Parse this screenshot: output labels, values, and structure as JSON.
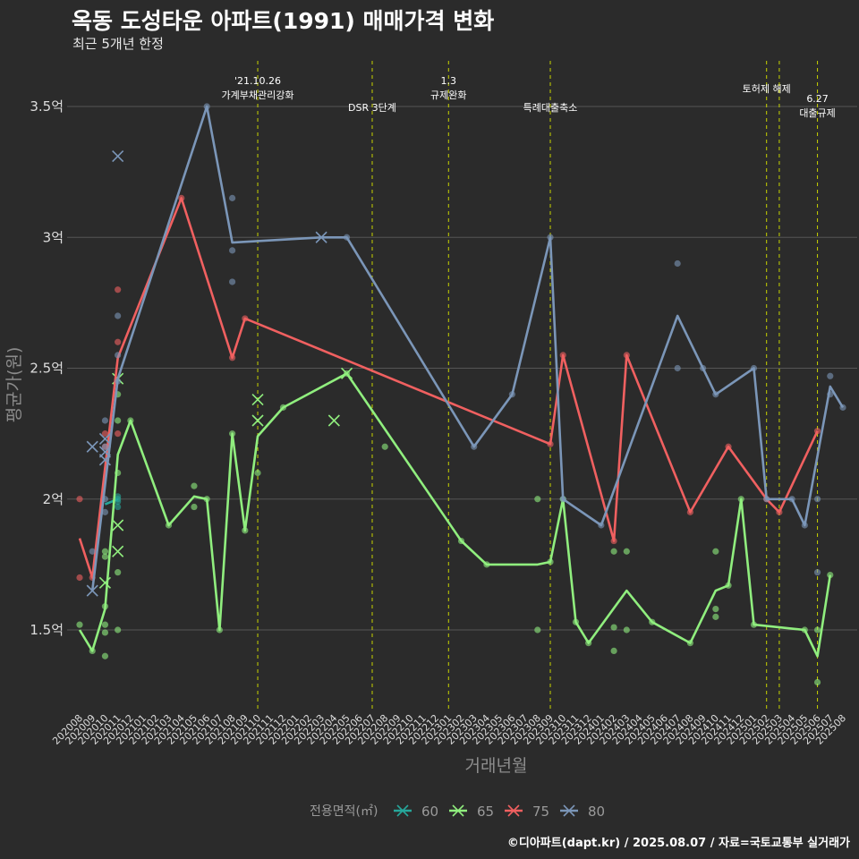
{
  "title": "옥동 도성타운 아파트(1991) 매매가격 변화",
  "subtitle": "최근 5개년 한정",
  "caption": "©디아파트(dapt.kr) / 2025.08.07 / 자료=국토교통부 실거래가",
  "colors": {
    "background": "#2b2b2b",
    "grid": "#555555",
    "policy_line": "#c8d400",
    "s60": "#26a69a",
    "s65": "#90ee7e",
    "s75": "#f06060",
    "s80": "#7b96b8"
  },
  "chart_data": {
    "type": "line",
    "xlabel": "거래년월",
    "ylabel": "평균가(원)",
    "ylim": [
      1.2,
      3.65
    ],
    "yticks": [
      {
        "v": 1.5,
        "label": "1.5억"
      },
      {
        "v": 2.0,
        "label": "2억"
      },
      {
        "v": 2.5,
        "label": "2.5억"
      },
      {
        "v": 3.0,
        "label": "3억"
      },
      {
        "v": 3.5,
        "label": "3.5억"
      }
    ],
    "months": [
      "202008",
      "202009",
      "202010",
      "202011",
      "202012",
      "202101",
      "202102",
      "202103",
      "202104",
      "202105",
      "202106",
      "202107",
      "202108",
      "202109",
      "202110",
      "202111",
      "202112",
      "202201",
      "202202",
      "202203",
      "202204",
      "202205",
      "202206",
      "202207",
      "202208",
      "202209",
      "202210",
      "202211",
      "202212",
      "202301",
      "202302",
      "202303",
      "202304",
      "202305",
      "202306",
      "202307",
      "202308",
      "202309",
      "202310",
      "202311",
      "202312",
      "202401",
      "202402",
      "202403",
      "202404",
      "202405",
      "202406",
      "202407",
      "202408",
      "202409",
      "202410",
      "202411",
      "202412",
      "202501",
      "202502",
      "202503",
      "202504",
      "202505",
      "202506",
      "202507",
      "202508"
    ],
    "annotations": [
      {
        "month": "202110",
        "lines": [
          "'21.10.26",
          "가계부채관리강화"
        ],
        "top": true
      },
      {
        "month": "202207",
        "lines": [
          "DSR 3단계"
        ],
        "top": false
      },
      {
        "month": "202301",
        "lines": [
          "1.3",
          "규제완화"
        ],
        "top": true
      },
      {
        "month": "202309",
        "lines": [
          "특례대출축소"
        ],
        "top": false
      },
      {
        "month": "202502",
        "lines": [
          "토허제 해제"
        ],
        "top": true
      },
      {
        "month": "202503",
        "lines": [],
        "top": true
      },
      {
        "month": "202506",
        "lines": [
          "6.27",
          "대출규제"
        ],
        "top": false
      }
    ],
    "legend_title": "전용면적(㎡)",
    "series": [
      {
        "name": "60",
        "color": "#26a69a",
        "line": [
          [
            "202010",
            1.98
          ],
          [
            "202011",
            2.0
          ]
        ],
        "points": [
          [
            "202011",
            1.97
          ],
          [
            "202011",
            1.99
          ],
          [
            "202011",
            2.01
          ],
          [
            "202011",
            2.0
          ]
        ],
        "crosses": []
      },
      {
        "name": "65",
        "color": "#90ee7e",
        "line": [
          [
            "202008",
            1.5
          ],
          [
            "202009",
            1.42
          ],
          [
            "202010",
            1.58
          ],
          [
            "202011",
            2.17
          ],
          [
            "202012",
            2.3
          ],
          [
            "202103",
            1.9
          ],
          [
            "202105",
            2.01
          ],
          [
            "202106",
            2.0
          ],
          [
            "202107",
            1.5
          ],
          [
            "202108",
            2.25
          ],
          [
            "202109",
            1.88
          ],
          [
            "202110",
            2.24
          ],
          [
            "202112",
            2.35
          ],
          [
            "202205",
            2.48
          ],
          [
            "202302",
            1.84
          ],
          [
            "202304",
            1.75
          ],
          [
            "202308",
            1.75
          ],
          [
            "202309",
            1.76
          ],
          [
            "202310",
            2.0
          ],
          [
            "202311",
            1.53
          ],
          [
            "202312",
            1.45
          ],
          [
            "202403",
            1.65
          ],
          [
            "202405",
            1.53
          ],
          [
            "202408",
            1.45
          ],
          [
            "202410",
            1.65
          ],
          [
            "202411",
            1.67
          ],
          [
            "202412",
            2.0
          ],
          [
            "202501",
            1.52
          ],
          [
            "202505",
            1.5
          ],
          [
            "202506",
            1.4
          ],
          [
            "202507",
            1.71
          ]
        ],
        "points": [
          [
            "202008",
            1.52
          ],
          [
            "202009",
            1.42
          ],
          [
            "202010",
            1.4
          ],
          [
            "202010",
            1.49
          ],
          [
            "202010",
            1.52
          ],
          [
            "202010",
            1.59
          ],
          [
            "202010",
            1.78
          ],
          [
            "202010",
            1.8
          ],
          [
            "202011",
            1.5
          ],
          [
            "202011",
            1.72
          ],
          [
            "202011",
            2.1
          ],
          [
            "202011",
            2.3
          ],
          [
            "202011",
            2.4
          ],
          [
            "202012",
            2.3
          ],
          [
            "202103",
            1.9
          ],
          [
            "202105",
            1.97
          ],
          [
            "202105",
            2.05
          ],
          [
            "202106",
            2.0
          ],
          [
            "202107",
            1.5
          ],
          [
            "202108",
            2.25
          ],
          [
            "202109",
            1.88
          ],
          [
            "202110",
            2.1
          ],
          [
            "202112",
            2.35
          ],
          [
            "202205",
            2.48
          ],
          [
            "202208",
            2.2
          ],
          [
            "202302",
            1.84
          ],
          [
            "202304",
            1.75
          ],
          [
            "202308",
            1.5
          ],
          [
            "202308",
            2.0
          ],
          [
            "202309",
            1.76
          ],
          [
            "202310",
            2.0
          ],
          [
            "202311",
            1.53
          ],
          [
            "202312",
            1.45
          ],
          [
            "202402",
            1.42
          ],
          [
            "202402",
            1.51
          ],
          [
            "202402",
            1.8
          ],
          [
            "202403",
            1.5
          ],
          [
            "202403",
            1.8
          ],
          [
            "202405",
            1.53
          ],
          [
            "202408",
            1.45
          ],
          [
            "202410",
            1.55
          ],
          [
            "202410",
            1.58
          ],
          [
            "202410",
            1.8
          ],
          [
            "202411",
            1.67
          ],
          [
            "202412",
            2.0
          ],
          [
            "202501",
            1.52
          ],
          [
            "202505",
            1.5
          ],
          [
            "202506",
            1.3
          ],
          [
            "202506",
            1.5
          ],
          [
            "202507",
            1.71
          ]
        ],
        "crosses": [
          [
            "202010",
            1.68
          ],
          [
            "202011",
            1.8
          ],
          [
            "202011",
            1.9
          ],
          [
            "202011",
            2.46
          ],
          [
            "202110",
            2.3
          ],
          [
            "202110",
            2.38
          ],
          [
            "202204",
            2.3
          ],
          [
            "202205",
            2.48
          ]
        ]
      },
      {
        "name": "75",
        "color": "#f06060",
        "line": [
          [
            "202008",
            1.85
          ],
          [
            "202009",
            1.7
          ],
          [
            "202011",
            2.54
          ],
          [
            "202104",
            3.15
          ],
          [
            "202108",
            2.54
          ],
          [
            "202109",
            2.69
          ],
          [
            "202309",
            2.21
          ],
          [
            "202310",
            2.55
          ],
          [
            "202402",
            1.84
          ],
          [
            "202403",
            2.55
          ],
          [
            "202408",
            1.95
          ],
          [
            "202411",
            2.2
          ],
          [
            "202502",
            2.0
          ],
          [
            "202503",
            1.95
          ],
          [
            "202506",
            2.26
          ]
        ],
        "points": [
          [
            "202008",
            2.0
          ],
          [
            "202008",
            1.7
          ],
          [
            "202009",
            1.7
          ],
          [
            "202010",
            2.2
          ],
          [
            "202010",
            2.25
          ],
          [
            "202011",
            2.25
          ],
          [
            "202011",
            2.6
          ],
          [
            "202011",
            2.8
          ],
          [
            "202104",
            3.15
          ],
          [
            "202108",
            2.54
          ],
          [
            "202109",
            2.69
          ],
          [
            "202309",
            2.21
          ],
          [
            "202310",
            2.55
          ],
          [
            "202402",
            1.84
          ],
          [
            "202403",
            2.55
          ],
          [
            "202408",
            1.95
          ],
          [
            "202411",
            2.2
          ],
          [
            "202502",
            2.0
          ],
          [
            "202503",
            1.95
          ],
          [
            "202506",
            2.26
          ]
        ],
        "crosses": []
      },
      {
        "name": "80",
        "color": "#7b96b8",
        "line": [
          [
            "202009",
            1.65
          ],
          [
            "202011",
            2.46
          ],
          [
            "202106",
            3.5
          ],
          [
            "202108",
            2.98
          ],
          [
            "202203",
            3.0
          ],
          [
            "202205",
            3.0
          ],
          [
            "202303",
            2.2
          ],
          [
            "202306",
            2.4
          ],
          [
            "202309",
            3.0
          ],
          [
            "202310",
            2.0
          ],
          [
            "202401",
            1.9
          ],
          [
            "202407",
            2.7
          ],
          [
            "202409",
            2.5
          ],
          [
            "202410",
            2.4
          ],
          [
            "202501",
            2.5
          ],
          [
            "202502",
            2.0
          ],
          [
            "202504",
            2.0
          ],
          [
            "202505",
            1.9
          ],
          [
            "202507",
            2.43
          ],
          [
            "202508",
            2.35
          ]
        ],
        "points": [
          [
            "202009",
            1.8
          ],
          [
            "202010",
            1.95
          ],
          [
            "202010",
            2.0
          ],
          [
            "202010",
            2.2
          ],
          [
            "202010",
            2.3
          ],
          [
            "202011",
            2.45
          ],
          [
            "202011",
            2.55
          ],
          [
            "202011",
            2.7
          ],
          [
            "202106",
            3.5
          ],
          [
            "202108",
            2.83
          ],
          [
            "202108",
            2.95
          ],
          [
            "202108",
            3.15
          ],
          [
            "202205",
            3.0
          ],
          [
            "202303",
            2.2
          ],
          [
            "202306",
            2.4
          ],
          [
            "202309",
            3.0
          ],
          [
            "202310",
            2.0
          ],
          [
            "202401",
            1.9
          ],
          [
            "202407",
            2.5
          ],
          [
            "202407",
            2.9
          ],
          [
            "202409",
            2.5
          ],
          [
            "202410",
            2.4
          ],
          [
            "202501",
            2.5
          ],
          [
            "202502",
            2.0
          ],
          [
            "202504",
            2.0
          ],
          [
            "202505",
            1.9
          ],
          [
            "202506",
            1.72
          ],
          [
            "202506",
            2.0
          ],
          [
            "202507",
            2.47
          ],
          [
            "202507",
            2.4
          ],
          [
            "202508",
            2.35
          ]
        ],
        "crosses": [
          [
            "202009",
            1.65
          ],
          [
            "202009",
            2.2
          ],
          [
            "202010",
            2.15
          ],
          [
            "202010",
            2.18
          ],
          [
            "202010",
            2.23
          ],
          [
            "202011",
            3.31
          ],
          [
            "202203",
            3.0
          ]
        ]
      }
    ]
  }
}
